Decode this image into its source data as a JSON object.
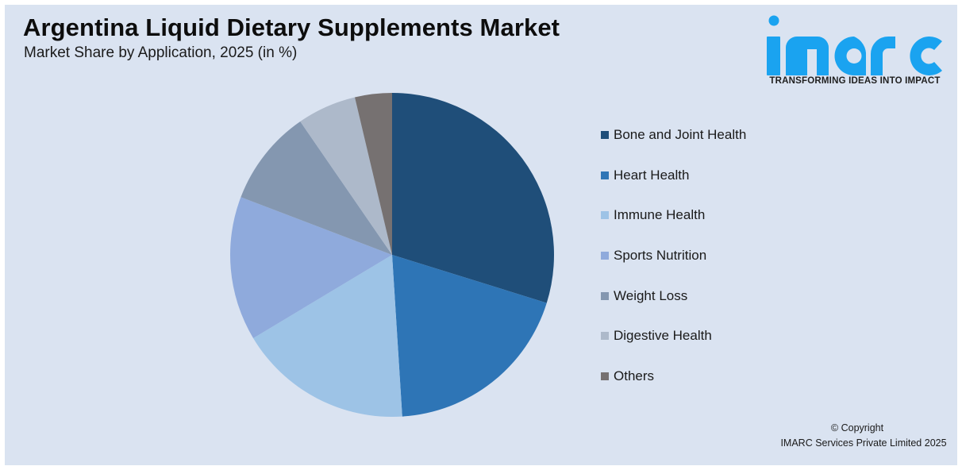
{
  "header": {
    "title": "Argentina Liquid Dietary Supplements Market",
    "subtitle": "Market Share by Application, 2025 (in %)"
  },
  "logo": {
    "wordmark": "imarc",
    "tagline": "TRANSFORMING IDEAS INTO IMPACT",
    "color": "#1aa3f0"
  },
  "footer": {
    "copyright_line1": "© Copyright",
    "copyright_line2": "IMARC Services Private Limited 2025"
  },
  "colors": {
    "background": "#dae3f1",
    "frame": "#ffffff"
  },
  "chart_data": {
    "type": "pie",
    "title": "Argentina Liquid Dietary Supplements Market",
    "subtitle": "Market Share by Application, 2025 (in %)",
    "categories": [
      "Bone and Joint Health",
      "Heart Health",
      "Immune Health",
      "Sports Nutrition",
      "Weight Loss",
      "Digestive Health",
      "Others"
    ],
    "values": [
      29.8,
      19.2,
      17.4,
      14.4,
      9.6,
      5.9,
      3.7
    ],
    "colors": [
      "#1f4e79",
      "#2e75b6",
      "#9dc3e6",
      "#8faadc",
      "#8497b0",
      "#adb9ca",
      "#767171"
    ],
    "start_angle_deg": 0,
    "direction": "clockwise",
    "data_labels": false,
    "legend_position": "right",
    "xlabel": "",
    "ylabel": ""
  },
  "legend": {
    "items": [
      {
        "label": "Bone and Joint Health",
        "color": "#1f4e79"
      },
      {
        "label": "Heart Health",
        "color": "#2e75b6"
      },
      {
        "label": "Immune Health",
        "color": "#9dc3e6"
      },
      {
        "label": "Sports Nutrition",
        "color": "#8faadc"
      },
      {
        "label": "Weight Loss",
        "color": "#8497b0"
      },
      {
        "label": "Digestive Health",
        "color": "#adb9ca"
      },
      {
        "label": "Others",
        "color": "#767171"
      }
    ]
  }
}
